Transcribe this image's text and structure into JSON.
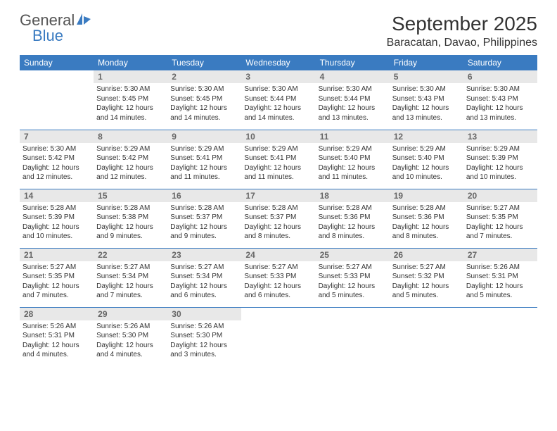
{
  "brand": {
    "word1": "General",
    "word2": "Blue",
    "color_text": "#555555",
    "color_accent": "#3a7bc1"
  },
  "title": "September 2025",
  "location": "Baracatan, Davao, Philippines",
  "header_bg": "#3a7bc1",
  "header_fg": "#ffffff",
  "daynum_bg": "#e8e8e8",
  "border_color": "#3a7bc1",
  "day_names": [
    "Sunday",
    "Monday",
    "Tuesday",
    "Wednesday",
    "Thursday",
    "Friday",
    "Saturday"
  ],
  "weeks": [
    [
      null,
      {
        "n": "1",
        "sr": "Sunrise: 5:30 AM",
        "ss": "Sunset: 5:45 PM",
        "dl": "Daylight: 12 hours and 14 minutes."
      },
      {
        "n": "2",
        "sr": "Sunrise: 5:30 AM",
        "ss": "Sunset: 5:45 PM",
        "dl": "Daylight: 12 hours and 14 minutes."
      },
      {
        "n": "3",
        "sr": "Sunrise: 5:30 AM",
        "ss": "Sunset: 5:44 PM",
        "dl": "Daylight: 12 hours and 14 minutes."
      },
      {
        "n": "4",
        "sr": "Sunrise: 5:30 AM",
        "ss": "Sunset: 5:44 PM",
        "dl": "Daylight: 12 hours and 13 minutes."
      },
      {
        "n": "5",
        "sr": "Sunrise: 5:30 AM",
        "ss": "Sunset: 5:43 PM",
        "dl": "Daylight: 12 hours and 13 minutes."
      },
      {
        "n": "6",
        "sr": "Sunrise: 5:30 AM",
        "ss": "Sunset: 5:43 PM",
        "dl": "Daylight: 12 hours and 13 minutes."
      }
    ],
    [
      {
        "n": "7",
        "sr": "Sunrise: 5:30 AM",
        "ss": "Sunset: 5:42 PM",
        "dl": "Daylight: 12 hours and 12 minutes."
      },
      {
        "n": "8",
        "sr": "Sunrise: 5:29 AM",
        "ss": "Sunset: 5:42 PM",
        "dl": "Daylight: 12 hours and 12 minutes."
      },
      {
        "n": "9",
        "sr": "Sunrise: 5:29 AM",
        "ss": "Sunset: 5:41 PM",
        "dl": "Daylight: 12 hours and 11 minutes."
      },
      {
        "n": "10",
        "sr": "Sunrise: 5:29 AM",
        "ss": "Sunset: 5:41 PM",
        "dl": "Daylight: 12 hours and 11 minutes."
      },
      {
        "n": "11",
        "sr": "Sunrise: 5:29 AM",
        "ss": "Sunset: 5:40 PM",
        "dl": "Daylight: 12 hours and 11 minutes."
      },
      {
        "n": "12",
        "sr": "Sunrise: 5:29 AM",
        "ss": "Sunset: 5:40 PM",
        "dl": "Daylight: 12 hours and 10 minutes."
      },
      {
        "n": "13",
        "sr": "Sunrise: 5:29 AM",
        "ss": "Sunset: 5:39 PM",
        "dl": "Daylight: 12 hours and 10 minutes."
      }
    ],
    [
      {
        "n": "14",
        "sr": "Sunrise: 5:28 AM",
        "ss": "Sunset: 5:39 PM",
        "dl": "Daylight: 12 hours and 10 minutes."
      },
      {
        "n": "15",
        "sr": "Sunrise: 5:28 AM",
        "ss": "Sunset: 5:38 PM",
        "dl": "Daylight: 12 hours and 9 minutes."
      },
      {
        "n": "16",
        "sr": "Sunrise: 5:28 AM",
        "ss": "Sunset: 5:37 PM",
        "dl": "Daylight: 12 hours and 9 minutes."
      },
      {
        "n": "17",
        "sr": "Sunrise: 5:28 AM",
        "ss": "Sunset: 5:37 PM",
        "dl": "Daylight: 12 hours and 8 minutes."
      },
      {
        "n": "18",
        "sr": "Sunrise: 5:28 AM",
        "ss": "Sunset: 5:36 PM",
        "dl": "Daylight: 12 hours and 8 minutes."
      },
      {
        "n": "19",
        "sr": "Sunrise: 5:28 AM",
        "ss": "Sunset: 5:36 PM",
        "dl": "Daylight: 12 hours and 8 minutes."
      },
      {
        "n": "20",
        "sr": "Sunrise: 5:27 AM",
        "ss": "Sunset: 5:35 PM",
        "dl": "Daylight: 12 hours and 7 minutes."
      }
    ],
    [
      {
        "n": "21",
        "sr": "Sunrise: 5:27 AM",
        "ss": "Sunset: 5:35 PM",
        "dl": "Daylight: 12 hours and 7 minutes."
      },
      {
        "n": "22",
        "sr": "Sunrise: 5:27 AM",
        "ss": "Sunset: 5:34 PM",
        "dl": "Daylight: 12 hours and 7 minutes."
      },
      {
        "n": "23",
        "sr": "Sunrise: 5:27 AM",
        "ss": "Sunset: 5:34 PM",
        "dl": "Daylight: 12 hours and 6 minutes."
      },
      {
        "n": "24",
        "sr": "Sunrise: 5:27 AM",
        "ss": "Sunset: 5:33 PM",
        "dl": "Daylight: 12 hours and 6 minutes."
      },
      {
        "n": "25",
        "sr": "Sunrise: 5:27 AM",
        "ss": "Sunset: 5:33 PM",
        "dl": "Daylight: 12 hours and 5 minutes."
      },
      {
        "n": "26",
        "sr": "Sunrise: 5:27 AM",
        "ss": "Sunset: 5:32 PM",
        "dl": "Daylight: 12 hours and 5 minutes."
      },
      {
        "n": "27",
        "sr": "Sunrise: 5:26 AM",
        "ss": "Sunset: 5:31 PM",
        "dl": "Daylight: 12 hours and 5 minutes."
      }
    ],
    [
      {
        "n": "28",
        "sr": "Sunrise: 5:26 AM",
        "ss": "Sunset: 5:31 PM",
        "dl": "Daylight: 12 hours and 4 minutes."
      },
      {
        "n": "29",
        "sr": "Sunrise: 5:26 AM",
        "ss": "Sunset: 5:30 PM",
        "dl": "Daylight: 12 hours and 4 minutes."
      },
      {
        "n": "30",
        "sr": "Sunrise: 5:26 AM",
        "ss": "Sunset: 5:30 PM",
        "dl": "Daylight: 12 hours and 3 minutes."
      },
      null,
      null,
      null,
      null
    ]
  ]
}
